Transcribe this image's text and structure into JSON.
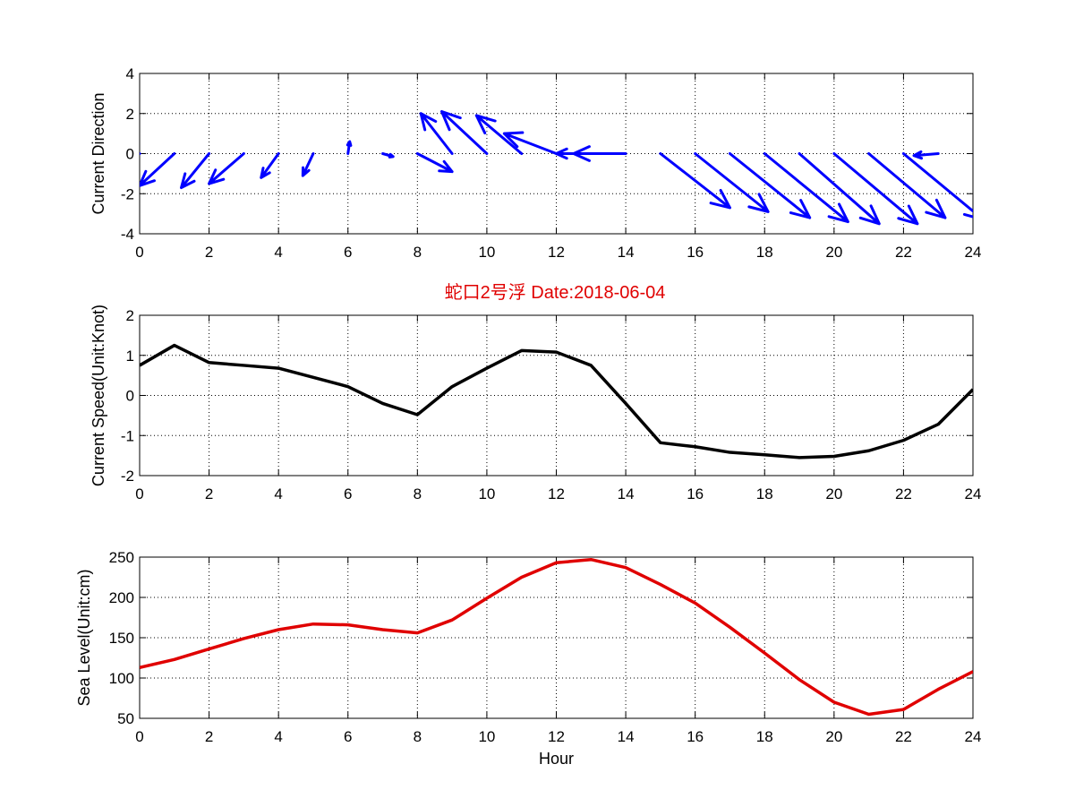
{
  "title": "蛇口2号浮   Date:2018-06-04",
  "colors": {
    "title": "#e00000",
    "arrows": "#0000ff",
    "speed": "#000000",
    "sea_level": "#e00000"
  },
  "chart_data": [
    {
      "type": "quiver",
      "ylabel": "Current Direction",
      "xlim": [
        0,
        24
      ],
      "ylim": [
        -4,
        4
      ],
      "grid": true,
      "xticks": [
        0,
        2,
        4,
        6,
        8,
        10,
        12,
        14,
        16,
        18,
        20,
        22,
        24
      ],
      "yticks": [
        -4,
        -2,
        0,
        2,
        4
      ],
      "x": [
        0,
        1,
        2,
        3,
        4,
        5,
        6,
        7,
        8,
        9,
        10,
        11,
        12,
        13,
        14,
        15,
        16,
        17,
        18,
        19,
        20,
        21,
        22,
        23,
        24
      ],
      "u": [
        -1.0,
        -1.0,
        -0.8,
        -1.0,
        -0.5,
        -0.3,
        0.05,
        0.3,
        1.0,
        -0.9,
        -1.3,
        -1.3,
        -1.5,
        -1.0,
        -1.5,
        2.0,
        2.1,
        2.3,
        2.4,
        2.3,
        2.4,
        2.2,
        2.3,
        -0.7,
        0.0
      ],
      "v": [
        -1.1,
        -1.6,
        -1.7,
        -1.5,
        -1.2,
        -1.1,
        0.6,
        -0.15,
        -0.9,
        2.0,
        2.1,
        1.9,
        1.0,
        0.0,
        0.0,
        -2.7,
        -2.9,
        -3.2,
        -3.4,
        -3.5,
        -3.5,
        -3.2,
        -3.3,
        -0.1,
        0.0
      ]
    },
    {
      "type": "line",
      "ylabel": "Current Speed(Unit:Knot)",
      "xlim": [
        0,
        24
      ],
      "ylim": [
        -2,
        2
      ],
      "grid": true,
      "xticks": [
        0,
        2,
        4,
        6,
        8,
        10,
        12,
        14,
        16,
        18,
        20,
        22,
        24
      ],
      "yticks": [
        -2,
        -1,
        0,
        1,
        2
      ],
      "x": [
        0,
        1,
        2,
        3,
        4,
        5,
        6,
        7,
        8,
        9,
        10,
        11,
        12,
        13,
        14,
        15,
        16,
        17,
        18,
        19,
        20,
        21,
        22,
        23,
        24
      ],
      "series": [
        {
          "values": [
            0.75,
            1.25,
            0.82,
            0.75,
            0.68,
            0.45,
            0.22,
            -0.2,
            -0.48,
            0.22,
            0.68,
            1.12,
            1.08,
            0.75,
            -0.2,
            -1.18,
            -1.28,
            -1.42,
            -1.48,
            -1.55,
            -1.52,
            -1.38,
            -1.12,
            -0.72,
            0.15
          ]
        }
      ]
    },
    {
      "type": "line",
      "ylabel": "Sea Level(Unit:cm)",
      "xlabel": "Hour",
      "xlim": [
        0,
        24
      ],
      "ylim": [
        50,
        250
      ],
      "grid": true,
      "xticks": [
        0,
        2,
        4,
        6,
        8,
        10,
        12,
        14,
        16,
        18,
        20,
        22,
        24
      ],
      "yticks": [
        50,
        100,
        150,
        200,
        250
      ],
      "x": [
        0,
        1,
        2,
        3,
        4,
        5,
        6,
        7,
        8,
        9,
        10,
        11,
        12,
        13,
        14,
        15,
        16,
        17,
        18,
        19,
        20,
        21,
        22,
        23,
        24
      ],
      "series": [
        {
          "values": [
            113,
            123,
            136,
            149,
            160,
            167,
            166,
            160,
            156,
            172,
            199,
            225,
            243,
            247,
            237,
            216,
            193,
            163,
            131,
            98,
            70,
            55,
            61,
            86,
            108
          ]
        }
      ]
    }
  ]
}
